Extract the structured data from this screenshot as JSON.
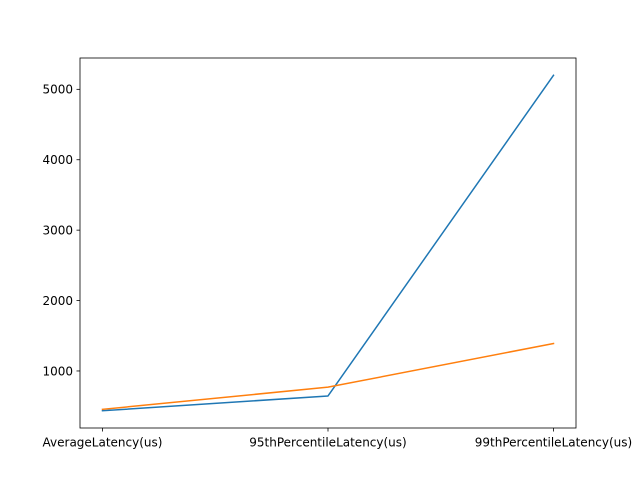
{
  "chart_data": {
    "type": "line",
    "title": "",
    "xlabel": "",
    "ylabel": "",
    "categories": [
      "AverageLatency(us)",
      "95thPercentileLatency(us)",
      "99thPercentileLatency(us)"
    ],
    "series": [
      {
        "color": "#1f77b4",
        "values": [
          435,
          645,
          5200
        ]
      },
      {
        "color": "#ff7f0e",
        "values": [
          455,
          770,
          1390
        ]
      }
    ],
    "ylim": [
      190,
      5445
    ],
    "yticks": [
      1000,
      2000,
      3000,
      4000,
      5000
    ],
    "grid": false,
    "legend": false
  }
}
